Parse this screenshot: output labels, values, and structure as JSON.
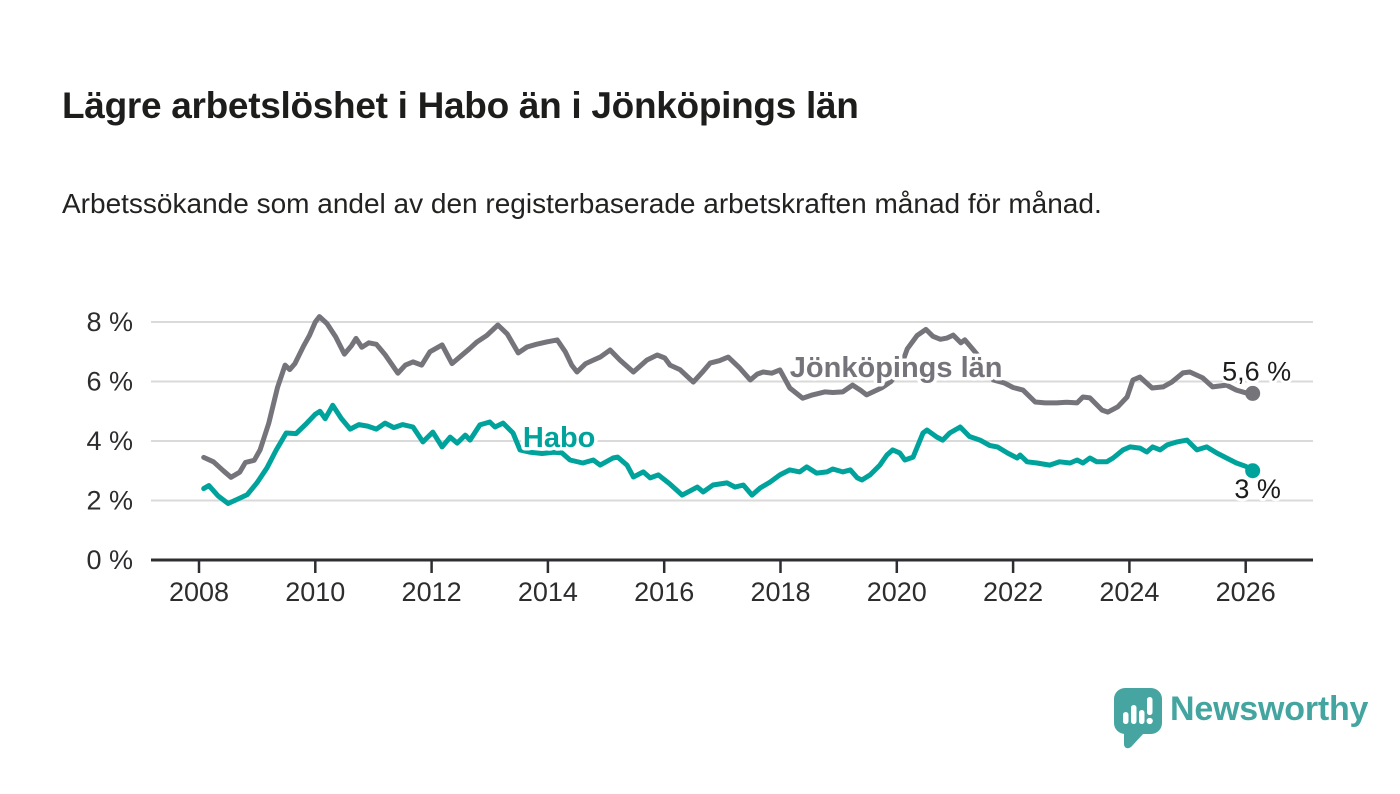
{
  "header": {
    "title": "Lägre arbetslöshet i Habo än i Jönköpings län",
    "subtitle": "Arbetssökande som andel av den registerbaserade arbetskraften månad för månad."
  },
  "chart_data": {
    "type": "line",
    "title": "Lägre arbetslöshet i Habo än i Jönköpings län",
    "subtitle": "Arbetssökande som andel av den registerbaserade arbetskraften månad för månad.",
    "xlabel": "",
    "ylabel": "",
    "grid": true,
    "x_range": [
      2007.16,
      2027.2
    ],
    "y_range": [
      0,
      8.8
    ],
    "x_ticks": [
      2008,
      2010,
      2012,
      2014,
      2016,
      2018,
      2020,
      2022,
      2024,
      2026
    ],
    "y_ticks": [
      {
        "value": 0,
        "label": "0 %"
      },
      {
        "value": 2,
        "label": "2 %"
      },
      {
        "value": 4,
        "label": "4 %"
      },
      {
        "value": 6,
        "label": "6 %"
      },
      {
        "value": 8,
        "label": "8 %"
      }
    ],
    "colors": {
      "axis": "#2e2e32",
      "gridline": "#dadada",
      "value_label": "#1d1d1b"
    },
    "series": [
      {
        "name": "Jönköpings län",
        "color": "#75747b",
        "end_value_label": "5,6 %",
        "end_value": 5.6,
        "label_anchor": [
          2018.16,
          6.15
        ],
        "points": [
          [
            2008.08,
            3.45
          ],
          [
            2008.25,
            3.3
          ],
          [
            2008.42,
            3.0
          ],
          [
            2008.55,
            2.78
          ],
          [
            2008.7,
            2.95
          ],
          [
            2008.8,
            3.28
          ],
          [
            2008.95,
            3.35
          ],
          [
            2009.05,
            3.7
          ],
          [
            2009.2,
            4.6
          ],
          [
            2009.35,
            5.8
          ],
          [
            2009.48,
            6.55
          ],
          [
            2009.56,
            6.4
          ],
          [
            2009.65,
            6.6
          ],
          [
            2009.8,
            7.2
          ],
          [
            2009.9,
            7.55
          ],
          [
            2010.0,
            8.0
          ],
          [
            2010.07,
            8.18
          ],
          [
            2010.2,
            7.95
          ],
          [
            2010.35,
            7.5
          ],
          [
            2010.5,
            6.92
          ],
          [
            2010.62,
            7.2
          ],
          [
            2010.7,
            7.45
          ],
          [
            2010.8,
            7.15
          ],
          [
            2010.92,
            7.3
          ],
          [
            2011.05,
            7.25
          ],
          [
            2011.2,
            6.9
          ],
          [
            2011.42,
            6.28
          ],
          [
            2011.55,
            6.55
          ],
          [
            2011.68,
            6.66
          ],
          [
            2011.83,
            6.55
          ],
          [
            2011.97,
            7.0
          ],
          [
            2012.18,
            7.23
          ],
          [
            2012.35,
            6.6
          ],
          [
            2012.5,
            6.85
          ],
          [
            2012.65,
            7.1
          ],
          [
            2012.78,
            7.33
          ],
          [
            2012.95,
            7.55
          ],
          [
            2013.14,
            7.9
          ],
          [
            2013.3,
            7.6
          ],
          [
            2013.49,
            6.96
          ],
          [
            2013.64,
            7.16
          ],
          [
            2013.8,
            7.25
          ],
          [
            2013.98,
            7.33
          ],
          [
            2014.16,
            7.4
          ],
          [
            2014.3,
            7.0
          ],
          [
            2014.41,
            6.55
          ],
          [
            2014.5,
            6.32
          ],
          [
            2014.65,
            6.6
          ],
          [
            2014.78,
            6.72
          ],
          [
            2014.9,
            6.82
          ],
          [
            2015.07,
            7.06
          ],
          [
            2015.24,
            6.72
          ],
          [
            2015.47,
            6.32
          ],
          [
            2015.7,
            6.72
          ],
          [
            2015.88,
            6.89
          ],
          [
            2016.01,
            6.79
          ],
          [
            2016.1,
            6.55
          ],
          [
            2016.27,
            6.4
          ],
          [
            2016.5,
            5.98
          ],
          [
            2016.65,
            6.3
          ],
          [
            2016.79,
            6.62
          ],
          [
            2016.95,
            6.7
          ],
          [
            2017.1,
            6.82
          ],
          [
            2017.3,
            6.45
          ],
          [
            2017.48,
            6.05
          ],
          [
            2017.6,
            6.25
          ],
          [
            2017.7,
            6.32
          ],
          [
            2017.85,
            6.28
          ],
          [
            2017.99,
            6.39
          ],
          [
            2018.16,
            5.78
          ],
          [
            2018.38,
            5.44
          ],
          [
            2018.55,
            5.55
          ],
          [
            2018.76,
            5.65
          ],
          [
            2018.9,
            5.63
          ],
          [
            2019.07,
            5.65
          ],
          [
            2019.24,
            5.88
          ],
          [
            2019.38,
            5.7
          ],
          [
            2019.48,
            5.55
          ],
          [
            2019.59,
            5.65
          ],
          [
            2019.75,
            5.8
          ],
          [
            2019.9,
            6.0
          ],
          [
            2020.05,
            6.4
          ],
          [
            2020.18,
            7.1
          ],
          [
            2020.35,
            7.55
          ],
          [
            2020.5,
            7.75
          ],
          [
            2020.62,
            7.52
          ],
          [
            2020.75,
            7.42
          ],
          [
            2020.86,
            7.46
          ],
          [
            2020.97,
            7.56
          ],
          [
            2021.1,
            7.3
          ],
          [
            2021.17,
            7.4
          ],
          [
            2021.3,
            7.1
          ],
          [
            2021.45,
            6.75
          ],
          [
            2021.66,
            6.05
          ],
          [
            2021.85,
            5.95
          ],
          [
            2022.0,
            5.8
          ],
          [
            2022.17,
            5.71
          ],
          [
            2022.38,
            5.31
          ],
          [
            2022.55,
            5.28
          ],
          [
            2022.75,
            5.28
          ],
          [
            2022.92,
            5.3
          ],
          [
            2023.1,
            5.28
          ],
          [
            2023.2,
            5.48
          ],
          [
            2023.32,
            5.45
          ],
          [
            2023.53,
            5.04
          ],
          [
            2023.63,
            4.97
          ],
          [
            2023.8,
            5.15
          ],
          [
            2023.96,
            5.48
          ],
          [
            2024.06,
            6.05
          ],
          [
            2024.18,
            6.15
          ],
          [
            2024.39,
            5.78
          ],
          [
            2024.58,
            5.82
          ],
          [
            2024.73,
            5.98
          ],
          [
            2024.92,
            6.29
          ],
          [
            2025.04,
            6.32
          ],
          [
            2025.26,
            6.12
          ],
          [
            2025.43,
            5.82
          ],
          [
            2025.67,
            5.88
          ],
          [
            2025.84,
            5.71
          ],
          [
            2026.0,
            5.62
          ],
          [
            2026.12,
            5.6
          ]
        ]
      },
      {
        "name": "Habo",
        "color": "#00a39b",
        "end_value_label": "3 %",
        "end_value": 3.0,
        "label_anchor": [
          2013.57,
          3.8
        ],
        "points": [
          [
            2008.08,
            2.4
          ],
          [
            2008.17,
            2.5
          ],
          [
            2008.33,
            2.15
          ],
          [
            2008.5,
            1.9
          ],
          [
            2008.67,
            2.05
          ],
          [
            2008.83,
            2.2
          ],
          [
            2009.0,
            2.6
          ],
          [
            2009.17,
            3.1
          ],
          [
            2009.33,
            3.7
          ],
          [
            2009.5,
            4.27
          ],
          [
            2009.67,
            4.25
          ],
          [
            2009.83,
            4.55
          ],
          [
            2010.0,
            4.9
          ],
          [
            2010.08,
            5.0
          ],
          [
            2010.17,
            4.75
          ],
          [
            2010.3,
            5.2
          ],
          [
            2010.45,
            4.75
          ],
          [
            2010.6,
            4.4
          ],
          [
            2010.75,
            4.55
          ],
          [
            2010.9,
            4.5
          ],
          [
            2011.05,
            4.4
          ],
          [
            2011.2,
            4.6
          ],
          [
            2011.35,
            4.45
          ],
          [
            2011.5,
            4.55
          ],
          [
            2011.68,
            4.47
          ],
          [
            2011.85,
            3.97
          ],
          [
            2012.02,
            4.3
          ],
          [
            2012.18,
            3.8
          ],
          [
            2012.32,
            4.13
          ],
          [
            2012.44,
            3.93
          ],
          [
            2012.58,
            4.2
          ],
          [
            2012.66,
            4.03
          ],
          [
            2012.83,
            4.54
          ],
          [
            2013.0,
            4.64
          ],
          [
            2013.09,
            4.47
          ],
          [
            2013.23,
            4.6
          ],
          [
            2013.4,
            4.27
          ],
          [
            2013.52,
            3.7
          ],
          [
            2013.7,
            3.62
          ],
          [
            2013.9,
            3.58
          ],
          [
            2014.1,
            3.62
          ],
          [
            2014.24,
            3.6
          ],
          [
            2014.38,
            3.36
          ],
          [
            2014.6,
            3.26
          ],
          [
            2014.78,
            3.36
          ],
          [
            2014.9,
            3.19
          ],
          [
            2015.12,
            3.43
          ],
          [
            2015.2,
            3.46
          ],
          [
            2015.36,
            3.19
          ],
          [
            2015.47,
            2.79
          ],
          [
            2015.64,
            2.96
          ],
          [
            2015.76,
            2.76
          ],
          [
            2015.9,
            2.86
          ],
          [
            2016.1,
            2.55
          ],
          [
            2016.31,
            2.18
          ],
          [
            2016.57,
            2.45
          ],
          [
            2016.67,
            2.29
          ],
          [
            2016.84,
            2.52
          ],
          [
            2017.08,
            2.59
          ],
          [
            2017.22,
            2.45
          ],
          [
            2017.36,
            2.52
          ],
          [
            2017.51,
            2.18
          ],
          [
            2017.65,
            2.42
          ],
          [
            2017.82,
            2.62
          ],
          [
            2017.99,
            2.86
          ],
          [
            2018.16,
            3.03
          ],
          [
            2018.33,
            2.96
          ],
          [
            2018.45,
            3.13
          ],
          [
            2018.62,
            2.92
          ],
          [
            2018.8,
            2.96
          ],
          [
            2018.9,
            3.06
          ],
          [
            2019.07,
            2.96
          ],
          [
            2019.2,
            3.03
          ],
          [
            2019.32,
            2.76
          ],
          [
            2019.4,
            2.69
          ],
          [
            2019.54,
            2.86
          ],
          [
            2019.71,
            3.19
          ],
          [
            2019.83,
            3.53
          ],
          [
            2019.93,
            3.7
          ],
          [
            2020.05,
            3.6
          ],
          [
            2020.14,
            3.36
          ],
          [
            2020.28,
            3.46
          ],
          [
            2020.45,
            4.27
          ],
          [
            2020.52,
            4.37
          ],
          [
            2020.69,
            4.13
          ],
          [
            2020.79,
            4.03
          ],
          [
            2020.91,
            4.27
          ],
          [
            2021.09,
            4.47
          ],
          [
            2021.25,
            4.15
          ],
          [
            2021.43,
            4.03
          ],
          [
            2021.6,
            3.85
          ],
          [
            2021.73,
            3.8
          ],
          [
            2021.9,
            3.6
          ],
          [
            2022.07,
            3.43
          ],
          [
            2022.12,
            3.53
          ],
          [
            2022.24,
            3.3
          ],
          [
            2022.41,
            3.26
          ],
          [
            2022.63,
            3.19
          ],
          [
            2022.8,
            3.3
          ],
          [
            2022.98,
            3.26
          ],
          [
            2023.1,
            3.36
          ],
          [
            2023.2,
            3.26
          ],
          [
            2023.32,
            3.43
          ],
          [
            2023.44,
            3.3
          ],
          [
            2023.61,
            3.3
          ],
          [
            2023.72,
            3.43
          ],
          [
            2023.89,
            3.7
          ],
          [
            2024.01,
            3.8
          ],
          [
            2024.18,
            3.76
          ],
          [
            2024.3,
            3.63
          ],
          [
            2024.4,
            3.8
          ],
          [
            2024.53,
            3.7
          ],
          [
            2024.65,
            3.87
          ],
          [
            2024.82,
            3.97
          ],
          [
            2024.99,
            4.03
          ],
          [
            2025.16,
            3.7
          ],
          [
            2025.33,
            3.8
          ],
          [
            2025.5,
            3.6
          ],
          [
            2025.67,
            3.43
          ],
          [
            2025.84,
            3.26
          ],
          [
            2026.0,
            3.15
          ],
          [
            2026.12,
            3.0
          ]
        ]
      }
    ]
  },
  "footer": {
    "brand": "Newsworthy",
    "brand_color": "#44a5a0",
    "logo_icon": "speech-bubble-bar-chart"
  }
}
